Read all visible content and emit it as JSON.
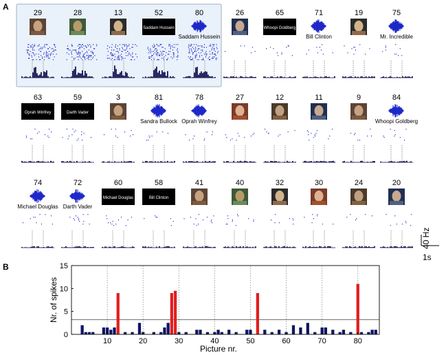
{
  "panel_a": {
    "label": "A",
    "stimuli": [
      {
        "id": "29",
        "kind": "photo",
        "highlight": true
      },
      {
        "id": "28",
        "kind": "photo",
        "highlight": true
      },
      {
        "id": "13",
        "kind": "photo",
        "highlight": true
      },
      {
        "id": "52",
        "kind": "text",
        "text": "Saddam Hussein",
        "highlight": true
      },
      {
        "id": "80",
        "kind": "audio",
        "caption": "Saddam Hussein",
        "highlight": true
      },
      {
        "id": "26",
        "kind": "photo",
        "highlight": false
      },
      {
        "id": "65",
        "kind": "text",
        "text": "Whoopi Goldberg",
        "highlight": false
      },
      {
        "id": "71",
        "kind": "audio",
        "caption": "Bill Clinton",
        "highlight": false
      },
      {
        "id": "19",
        "kind": "photo",
        "highlight": false
      },
      {
        "id": "75",
        "kind": "audio",
        "caption": "Mr. Incredible",
        "highlight": false
      },
      {
        "id": "63",
        "kind": "text",
        "text": "Oprah Winfrey",
        "highlight": false
      },
      {
        "id": "59",
        "kind": "text",
        "text": "Darth Vader",
        "highlight": false
      },
      {
        "id": "3",
        "kind": "photo",
        "highlight": false
      },
      {
        "id": "81",
        "kind": "audio",
        "caption": "Sandra Bullock",
        "highlight": false
      },
      {
        "id": "78",
        "kind": "audio",
        "caption": "Oprah Winfrey",
        "highlight": false
      },
      {
        "id": "27",
        "kind": "photo",
        "highlight": false
      },
      {
        "id": "12",
        "kind": "photo",
        "highlight": false
      },
      {
        "id": "11",
        "kind": "photo",
        "highlight": false
      },
      {
        "id": "9",
        "kind": "photo",
        "highlight": false
      },
      {
        "id": "84",
        "kind": "audio",
        "caption": "Whoopi Goldberg",
        "highlight": false
      },
      {
        "id": "74",
        "kind": "audio",
        "caption": "Michael Douglas",
        "highlight": false
      },
      {
        "id": "72",
        "kind": "audio",
        "caption": "Darth Vader",
        "highlight": false
      },
      {
        "id": "60",
        "kind": "text",
        "text": "Michael Douglas",
        "highlight": false
      },
      {
        "id": "58",
        "kind": "text",
        "text": "Bill Clinton",
        "highlight": false
      },
      {
        "id": "41",
        "kind": "photo",
        "highlight": false
      },
      {
        "id": "40",
        "kind": "photo",
        "highlight": false
      },
      {
        "id": "32",
        "kind": "photo",
        "highlight": false
      },
      {
        "id": "30",
        "kind": "photo",
        "highlight": false
      },
      {
        "id": "24",
        "kind": "photo",
        "highlight": false
      },
      {
        "id": "20",
        "kind": "photo",
        "highlight": false
      }
    ],
    "scale_bar": {
      "rate": "40 Hz",
      "time": "1s"
    }
  },
  "panel_b": {
    "label": "B"
  },
  "colors": {
    "raster": "#1e28c8",
    "histogram": "#141450",
    "bar_normal": "#0f1464",
    "bar_response": "#e01e1e",
    "highlight_fill": "#e9f1fa",
    "highlight_border": "#9ab0c8",
    "threshold": "#555555"
  },
  "chart_data": {
    "type": "bar",
    "xlabel": "Picture nr.",
    "ylabel": "Nr. of spikes",
    "xlim": [
      0,
      86
    ],
    "ylim": [
      0,
      15
    ],
    "xticks": [
      10,
      20,
      30,
      40,
      50,
      60,
      70,
      80
    ],
    "yticks": [
      0,
      5,
      10,
      15
    ],
    "threshold": 3.2,
    "grid": "vertical dotted",
    "x": [
      1,
      2,
      3,
      4,
      5,
      6,
      7,
      8,
      9,
      10,
      11,
      12,
      13,
      14,
      15,
      16,
      17,
      18,
      19,
      20,
      21,
      22,
      23,
      24,
      25,
      26,
      27,
      28,
      29,
      30,
      31,
      32,
      33,
      34,
      35,
      36,
      37,
      38,
      39,
      40,
      41,
      42,
      43,
      44,
      45,
      46,
      47,
      48,
      49,
      50,
      51,
      52,
      53,
      54,
      55,
      56,
      57,
      58,
      59,
      60,
      61,
      62,
      63,
      64,
      65,
      66,
      67,
      68,
      69,
      70,
      71,
      72,
      73,
      74,
      75,
      76,
      77,
      78,
      79,
      80,
      81,
      82,
      83,
      84,
      85
    ],
    "values": [
      0,
      0,
      2,
      0.5,
      0.5,
      0.5,
      0,
      0,
      1.5,
      1.5,
      1,
      1.5,
      9,
      0,
      0.5,
      0,
      0.5,
      0,
      2.5,
      0.5,
      0,
      0,
      0.5,
      0,
      0.5,
      1.5,
      2.5,
      9,
      9.5,
      0.5,
      0,
      0.5,
      0,
      0,
      1,
      1,
      0,
      0.5,
      0,
      0.5,
      1,
      0.5,
      0,
      1,
      0,
      0.5,
      0,
      0,
      1,
      1,
      0,
      9,
      0,
      1,
      0,
      0.5,
      0,
      1,
      0,
      0.5,
      0,
      2,
      0,
      1.5,
      0,
      2.5,
      0,
      0.5,
      0,
      1.5,
      1.5,
      0,
      1,
      0,
      0.5,
      1,
      0,
      0.5,
      0,
      11,
      0.5,
      0,
      0.5,
      1,
      1
    ],
    "responsive": [
      13,
      28,
      29,
      52,
      80
    ]
  }
}
